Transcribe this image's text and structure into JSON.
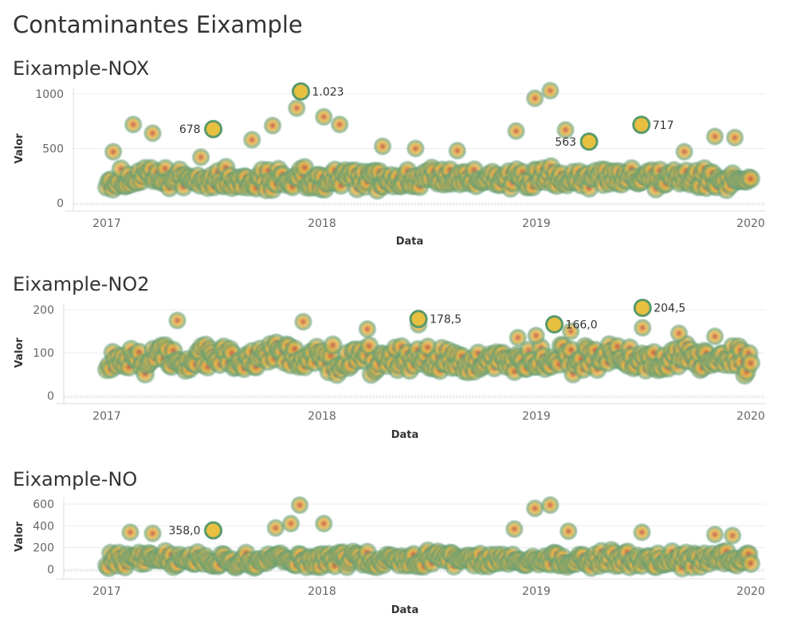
{
  "page_title": "Contaminantes Eixample",
  "chart_data": [
    {
      "type": "scatter",
      "title": "Eixample-NOX",
      "xlabel": "Data",
      "ylabel": "Valor",
      "x_ticks": [
        "2017",
        "2018",
        "2019",
        "2020"
      ],
      "y_ticks": [
        "0",
        "500",
        "1000"
      ],
      "xlim": [
        "2017-01-01",
        "2020-01-01"
      ],
      "ylim": [
        0,
        1000
      ],
      "grid": true,
      "baseline_mean": 220,
      "spread": 110,
      "annotations": [
        {
          "x": "2017-07-01",
          "y": 678,
          "label": "678"
        },
        {
          "x": "2017-11-27",
          "y": 1023,
          "label": "1.023"
        },
        {
          "x": "2019-04-01",
          "y": 563,
          "label": "563"
        },
        {
          "x": "2019-06-29",
          "y": 717,
          "label": "717"
        }
      ],
      "highlight_points": [
        {
          "x": "2017-01-12",
          "y": 470
        },
        {
          "x": "2017-02-15",
          "y": 720
        },
        {
          "x": "2017-03-20",
          "y": 640
        },
        {
          "x": "2017-06-10",
          "y": 420
        },
        {
          "x": "2017-09-05",
          "y": 580
        },
        {
          "x": "2017-10-10",
          "y": 710
        },
        {
          "x": "2017-11-20",
          "y": 870
        },
        {
          "x": "2018-01-05",
          "y": 790
        },
        {
          "x": "2018-02-01",
          "y": 720
        },
        {
          "x": "2018-04-15",
          "y": 520
        },
        {
          "x": "2018-06-10",
          "y": 500
        },
        {
          "x": "2018-08-20",
          "y": 480
        },
        {
          "x": "2018-11-28",
          "y": 660
        },
        {
          "x": "2018-12-30",
          "y": 960
        },
        {
          "x": "2019-01-25",
          "y": 1030
        },
        {
          "x": "2019-02-20",
          "y": 670
        },
        {
          "x": "2019-09-10",
          "y": 470
        },
        {
          "x": "2019-11-01",
          "y": 610
        },
        {
          "x": "2019-12-05",
          "y": 600
        }
      ]
    },
    {
      "type": "scatter",
      "title": "Eixample-NO2",
      "xlabel": "Data",
      "ylabel": "Valor",
      "x_ticks": [
        "2017",
        "2018",
        "2019",
        "2020"
      ],
      "y_ticks": [
        "0",
        "100",
        "200"
      ],
      "xlim": [
        "2017-01-01",
        "2020-01-01"
      ],
      "ylim": [
        0,
        200
      ],
      "grid": true,
      "baseline_mean": 85,
      "spread": 35,
      "annotations": [
        {
          "x": "2018-06-15",
          "y": 178.5,
          "label": "178,5"
        },
        {
          "x": "2019-02-01",
          "y": 166.0,
          "label": "166,0"
        },
        {
          "x": "2019-07-01",
          "y": 204.5,
          "label": "204,5"
        }
      ],
      "highlight_points": [
        {
          "x": "2017-05-01",
          "y": 175
        },
        {
          "x": "2017-12-01",
          "y": 172
        },
        {
          "x": "2018-03-20",
          "y": 155
        },
        {
          "x": "2018-06-15",
          "y": 165
        },
        {
          "x": "2018-12-01",
          "y": 135
        },
        {
          "x": "2019-01-01",
          "y": 140
        },
        {
          "x": "2019-03-01",
          "y": 150
        },
        {
          "x": "2019-07-01",
          "y": 158
        },
        {
          "x": "2019-09-01",
          "y": 145
        },
        {
          "x": "2019-11-01",
          "y": 138
        }
      ]
    },
    {
      "type": "scatter",
      "title": "Eixample-NO",
      "xlabel": "Data",
      "ylabel": "Valor",
      "x_ticks": [
        "2017",
        "2018",
        "2019",
        "2020"
      ],
      "y_ticks": [
        "0",
        "200",
        "400",
        "600"
      ],
      "xlim": [
        "2017-01-01",
        "2020-01-01"
      ],
      "ylim": [
        0,
        600
      ],
      "grid": true,
      "baseline_mean": 90,
      "spread": 80,
      "annotations": [
        {
          "x": "2017-07-01",
          "y": 358.0,
          "label": "358,0"
        }
      ],
      "highlight_points": [
        {
          "x": "2017-02-10",
          "y": 340
        },
        {
          "x": "2017-03-20",
          "y": 330
        },
        {
          "x": "2017-10-15",
          "y": 380
        },
        {
          "x": "2017-11-25",
          "y": 590
        },
        {
          "x": "2017-11-10",
          "y": 420
        },
        {
          "x": "2018-01-05",
          "y": 420
        },
        {
          "x": "2018-11-25",
          "y": 370
        },
        {
          "x": "2018-12-30",
          "y": 560
        },
        {
          "x": "2019-01-25",
          "y": 590
        },
        {
          "x": "2019-02-25",
          "y": 350
        },
        {
          "x": "2019-06-30",
          "y": 340
        },
        {
          "x": "2019-11-01",
          "y": 320
        },
        {
          "x": "2019-12-01",
          "y": 310
        }
      ]
    }
  ]
}
